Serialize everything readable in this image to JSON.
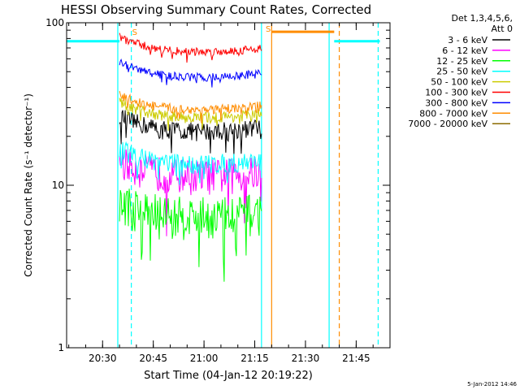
{
  "chart_data": {
    "type": "line",
    "title": "HESSI Observing Summary Count Rates, Corrected",
    "xlabel": "Start Time (04-Jan-12 20:19:22)",
    "ylabel": "Corrected Count Rate (s⁻¹ detector⁻¹)",
    "yscale": "log",
    "ylim": [
      1,
      100
    ],
    "xlim": [
      "20:19:22",
      "21:55:00"
    ],
    "x_ticks": [
      "20:30",
      "20:45",
      "21:00",
      "21:15",
      "21:30",
      "21:45"
    ],
    "y_ticks": [
      "1",
      "10",
      "100"
    ],
    "grid": false,
    "legend_position": "top-right",
    "legend_title": [
      "Det 1,3,4,5,6,",
      "Att 0"
    ],
    "series": [
      {
        "name": "3 - 6 keV",
        "color": "#000000",
        "level": 21.5,
        "start": "20:35",
        "end": "21:17",
        "noise": 0.13
      },
      {
        "name": "6 - 12 keV",
        "color": "#ff00ff",
        "level": 11.5,
        "start": "20:35",
        "end": "21:17",
        "noise": 0.25
      },
      {
        "name": "12 - 25 keV",
        "color": "#00ff00",
        "level": 6.5,
        "start": "20:35",
        "end": "21:17",
        "noise": 0.3
      },
      {
        "name": "25 - 50 keV",
        "color": "#00ffff",
        "level": 13.5,
        "start": "20:35",
        "end": "21:17",
        "noise": 0.14
      },
      {
        "name": "50 - 100 keV",
        "color": "#cccc00",
        "level": 26.0,
        "start": "20:35",
        "end": "21:17",
        "noise": 0.08
      },
      {
        "name": "100 - 300 keV",
        "color": "#ff0000",
        "level": 66.0,
        "start": "20:35",
        "end": "21:17",
        "noise": 0.06
      },
      {
        "name": "300 - 800 keV",
        "color": "#0000ff",
        "level": 46.0,
        "start": "20:35",
        "end": "21:17",
        "noise": 0.06
      },
      {
        "name": "800 - 7000 keV",
        "color": "#ff8c00",
        "level": 29.0,
        "start": "20:35",
        "end": "21:17",
        "noise": 0.07
      },
      {
        "name": "7000 - 20000 keV",
        "color": "#8b6b00",
        "level": 0,
        "start": "",
        "end": "",
        "noise": 0
      }
    ],
    "vertical_markers": [
      {
        "time": "20:34:30",
        "color": "#00ffff",
        "style": "solid"
      },
      {
        "time": "20:38:30",
        "color": "#00ffff",
        "style": "dashed"
      },
      {
        "time": "21:17:00",
        "color": "#00ffff",
        "style": "solid"
      },
      {
        "time": "21:20:00",
        "color": "#ff8c00",
        "style": "solid"
      },
      {
        "time": "21:37:00",
        "color": "#00ffff",
        "style": "solid"
      },
      {
        "time": "21:40:00",
        "color": "#ff8c00",
        "style": "dashed"
      },
      {
        "time": "21:51:30",
        "color": "#00ffff",
        "style": "dashed"
      }
    ],
    "horizontal_bars": [
      {
        "start": "20:19:22",
        "end": "20:35:00",
        "value": 77,
        "color": "#00ffff"
      },
      {
        "start": "21:20:00",
        "end": "21:38:30",
        "value": 88,
        "color": "#ff8c00"
      },
      {
        "start": "21:38:30",
        "end": "21:52:00",
        "value": 77,
        "color": "#00ffff"
      }
    ],
    "annotations": [
      {
        "text": "S",
        "time": "21:19:00",
        "value": 92,
        "color": "#ff8c00"
      },
      {
        "text": "S",
        "time": "20:39:30",
        "value": 88,
        "color": "#ff8c00"
      }
    ],
    "footer_date": "5-Jan-2012 14:46"
  }
}
